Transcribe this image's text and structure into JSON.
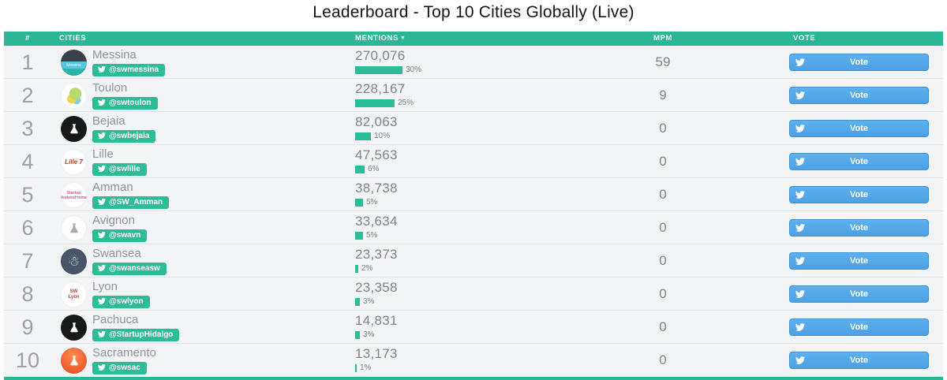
{
  "page": {
    "title": "Leaderboard - Top 10 Cities Globally (Live)"
  },
  "colors": {
    "header_teal": "#29b795",
    "badge_green": "#2dbd96",
    "bar_teal": "#2cbd98",
    "vote_blue": "#55acee",
    "row_bg": "#f3f4f6"
  },
  "table": {
    "headers": {
      "rank": "#",
      "cities": "CITIES",
      "mentions": "MENTIONS",
      "sort_caret": "▼",
      "mpm": "MPM",
      "vote": "VOTE"
    },
    "vote_button_label": "Vote",
    "icons": {
      "badge_icon": "twitter-icon",
      "vote_icon": "twitter-icon",
      "sort_icon": "sort-desc-icon"
    },
    "rows": [
      {
        "rank": "1",
        "city": "Messina",
        "handle": "@swmessina",
        "mentions": "270,076",
        "pct": 30,
        "pct_label": "30%",
        "mpm": "59"
      },
      {
        "rank": "2",
        "city": "Toulon",
        "handle": "@swtoulon",
        "mentions": "228,167",
        "pct": 25,
        "pct_label": "25%",
        "mpm": "9"
      },
      {
        "rank": "3",
        "city": "Bejaia",
        "handle": "@swbejaia",
        "mentions": "82,063",
        "pct": 10,
        "pct_label": "10%",
        "mpm": "0"
      },
      {
        "rank": "4",
        "city": "Lille",
        "handle": "@swlille",
        "mentions": "47,563",
        "pct": 6,
        "pct_label": "6%",
        "mpm": "0"
      },
      {
        "rank": "5",
        "city": "Amman",
        "handle": "@SW_Amman",
        "mentions": "38,738",
        "pct": 5,
        "pct_label": "5%",
        "mpm": "0"
      },
      {
        "rank": "6",
        "city": "Avignon",
        "handle": "@swavn",
        "mentions": "33,634",
        "pct": 5,
        "pct_label": "5%",
        "mpm": "0"
      },
      {
        "rank": "7",
        "city": "Swansea",
        "handle": "@swanseasw",
        "mentions": "23,373",
        "pct": 2,
        "pct_label": "2%",
        "mpm": "0"
      },
      {
        "rank": "8",
        "city": "Lyon",
        "handle": "@swlyon",
        "mentions": "23,358",
        "pct": 3,
        "pct_label": "3%",
        "mpm": "0"
      },
      {
        "rank": "9",
        "city": "Pachuca",
        "handle": "@StartupHidalgo",
        "mentions": "14,831",
        "pct": 3,
        "pct_label": "3%",
        "mpm": "0"
      },
      {
        "rank": "10",
        "city": "Sacramento",
        "handle": "@swsac",
        "mentions": "13,173",
        "pct": 1,
        "pct_label": "1%",
        "mpm": "0"
      }
    ]
  }
}
